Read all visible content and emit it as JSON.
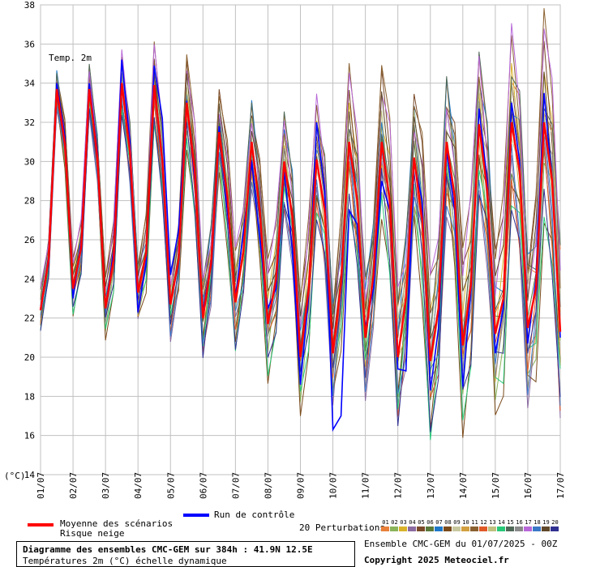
{
  "chart_data": {
    "type": "line",
    "panel_label": "Temp. 2m",
    "y_unit_label": "(°C)",
    "ylim": [
      14,
      38
    ],
    "y_ticks": [
      14,
      16,
      18,
      20,
      22,
      24,
      26,
      28,
      30,
      32,
      34,
      36,
      38
    ],
    "x_tick_labels": [
      "01/07",
      "02/07",
      "03/07",
      "04/07",
      "05/07",
      "06/07",
      "07/07",
      "08/07",
      "09/07",
      "10/07",
      "11/07",
      "12/07",
      "13/07",
      "14/07",
      "15/07",
      "16/07",
      "17/07"
    ],
    "step_hours": 6,
    "grid": true,
    "mean": {
      "label": "Moyenne des scénarios",
      "color": "#ff0000",
      "values": [
        22.4,
        25.0,
        33.7,
        30.9,
        23.5,
        25.6,
        33.7,
        30.2,
        22.5,
        25.0,
        34.0,
        30.5,
        23.3,
        25.3,
        33.9,
        30.0,
        22.7,
        25.0,
        33.0,
        29.5,
        22.0,
        24.8,
        31.5,
        28.2,
        22.8,
        25.5,
        31.0,
        27.5,
        21.7,
        24.0,
        30.0,
        27.2,
        20.0,
        23.4,
        30.1,
        27.5,
        20.2,
        23.8,
        31.0,
        28.0,
        21.0,
        24.2,
        31.0,
        28.0,
        20.0,
        23.0,
        30.2,
        27.0,
        19.8,
        22.5,
        31.0,
        28.2,
        20.6,
        23.7,
        31.9,
        28.5,
        21.2,
        23.0,
        32.0,
        29.5,
        21.5,
        23.5,
        32.0,
        29.0,
        21.3
      ]
    },
    "control": {
      "label": "Run de contrôle",
      "color": "#0000ff",
      "values": [
        22.5,
        25.2,
        34.0,
        31.3,
        23.0,
        26.0,
        34.0,
        30.5,
        22.5,
        25.5,
        35.2,
        31.0,
        22.3,
        24.8,
        34.9,
        32.2,
        24.2,
        26.5,
        33.1,
        29.0,
        22.3,
        25.0,
        31.8,
        27.5,
        23.0,
        26.5,
        30.0,
        26.0,
        22.5,
        23.5,
        29.5,
        25.5,
        18.6,
        23.0,
        32.0,
        28.5,
        16.3,
        17.0,
        27.5,
        26.8,
        21.5,
        23.5,
        29.0,
        27.5,
        19.4,
        19.3,
        30.0,
        28.0,
        18.3,
        21.5,
        30.5,
        27.5,
        18.5,
        23.5,
        32.7,
        29.0,
        20.2,
        22.5,
        33.0,
        30.0,
        20.7,
        24.0,
        33.5,
        29.0,
        21.0
      ]
    },
    "snow_risk": {
      "label": "Risque neige"
    },
    "perturbations": {
      "label": "20 Perturbations",
      "ids": [
        "01",
        "02",
        "03",
        "04",
        "05",
        "06",
        "07",
        "08",
        "09",
        "10",
        "11",
        "12",
        "13",
        "14",
        "15",
        "16",
        "17",
        "18",
        "19",
        "20"
      ],
      "colors": [
        "#e8803a",
        "#8ab35a",
        "#d9b22a",
        "#8a6aa0",
        "#7b4a2a",
        "#5a7a3a",
        "#1e78c8",
        "#7a4a1a",
        "#c8c8a0",
        "#d2a040",
        "#8a6030",
        "#e05a28",
        "#c0c080",
        "#28c878",
        "#506858",
        "#8a8a8a",
        "#b868d8",
        "#3a78c8",
        "#60482a",
        "#303090"
      ]
    }
  },
  "title_box": {
    "line1": "Diagramme des ensembles CMC-GEM sur 384h : 41.9N 12.5E",
    "line2": "Températures 2m (°C) échelle dynamique"
  },
  "footer": {
    "run_info": "Ensemble CMC-GEM du 01/07/2025 - 00Z",
    "copyright": "Copyright 2025 Meteociel.fr"
  }
}
